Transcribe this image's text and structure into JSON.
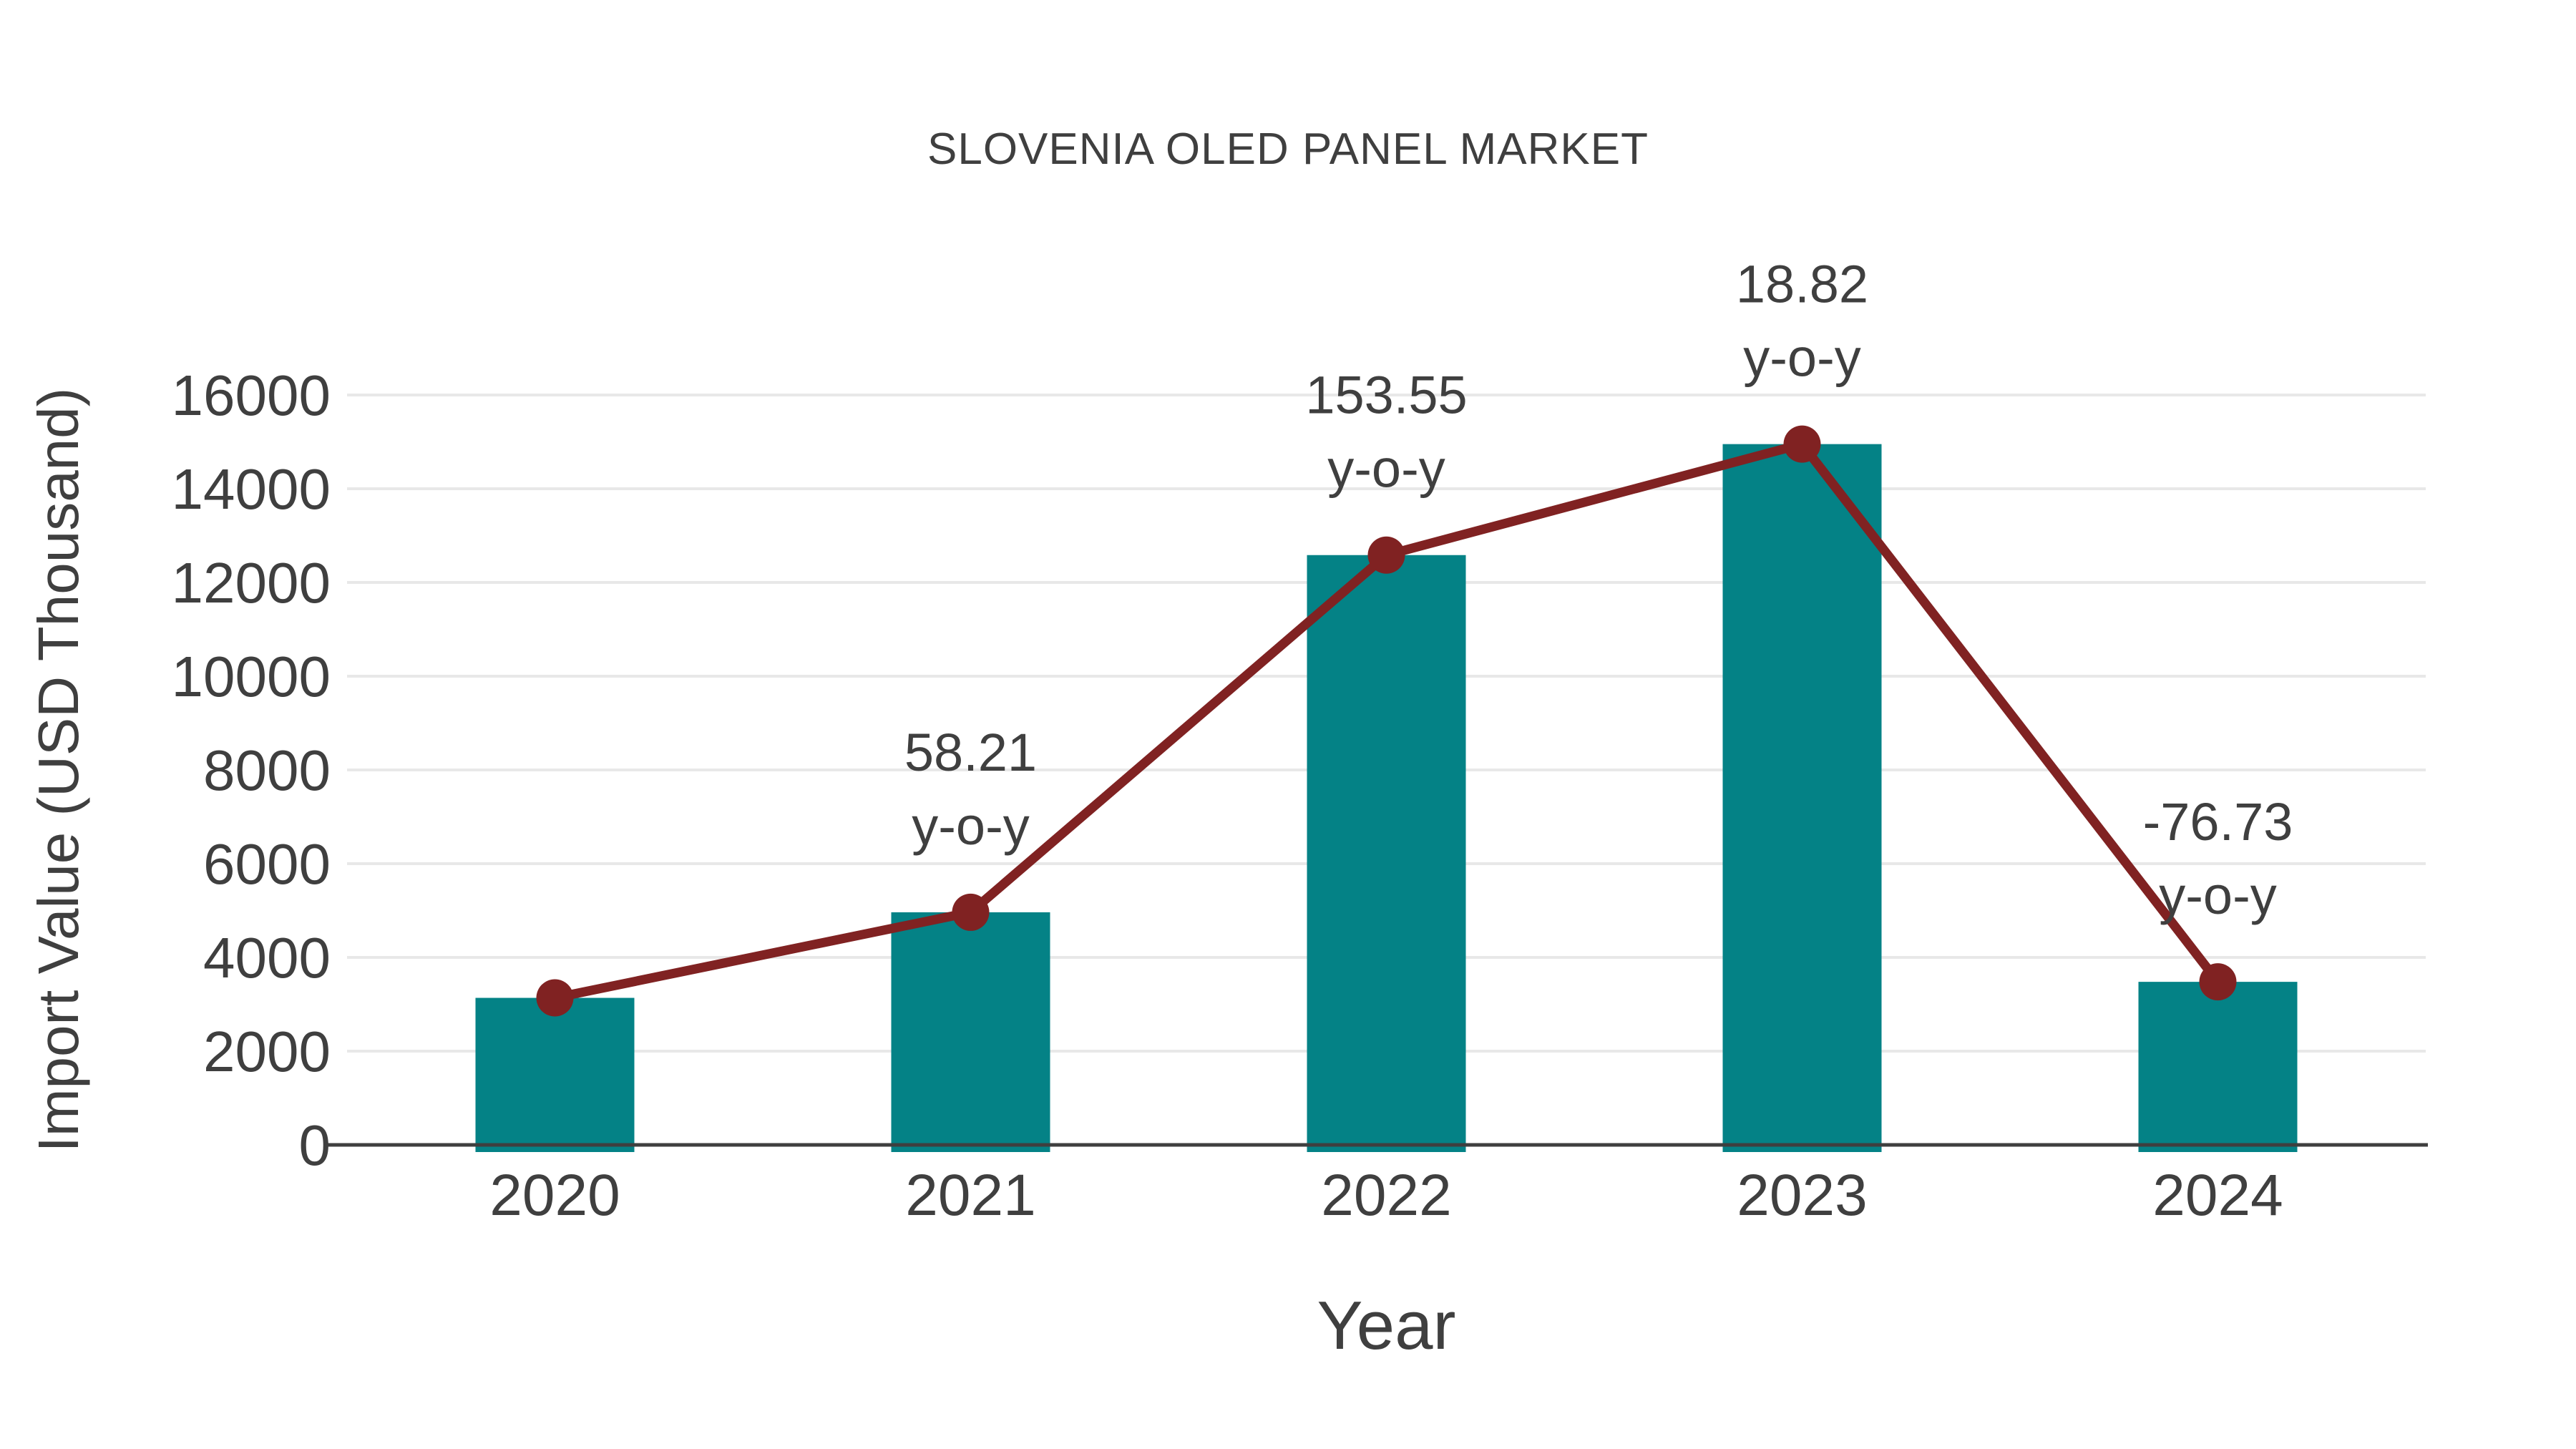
{
  "title": "SLOVENIA OLED PANEL MARKET",
  "colors": {
    "bar": "#048286",
    "line": "#802222",
    "marker": "#802222",
    "grid": "#e8e8e8",
    "axis": "#3f3f3f",
    "text": "#3f3f3f",
    "background": "#ffffff"
  },
  "chart_data": {
    "type": "bar",
    "overlay": "line",
    "title": "SLOVENIA OLED PANEL MARKET",
    "xlabel": "Year",
    "ylabel": "Import Value (USD Thousand)",
    "categories": [
      "2020",
      "2021",
      "2022",
      "2023",
      "2024"
    ],
    "series": [
      {
        "name": "Import Value (USD Thousand)",
        "type": "bar",
        "values": [
          3137,
          4963,
          12584,
          14952,
          3479
        ]
      },
      {
        "name": "Import Value trend",
        "type": "line",
        "values": [
          3137,
          4963,
          12584,
          14952,
          3479
        ]
      }
    ],
    "annotations": [
      {
        "category": "2021",
        "line1": "58.21",
        "line2": "y-o-y"
      },
      {
        "category": "2022",
        "line1": "153.55",
        "line2": "y-o-y"
      },
      {
        "category": "2023",
        "line1": "18.82",
        "line2": "y-o-y"
      },
      {
        "category": "2024",
        "line1": "-76.73",
        "line2": "y-o-y"
      }
    ],
    "ylim": [
      0,
      16000
    ],
    "yticks": [
      0,
      2000,
      4000,
      6000,
      8000,
      10000,
      12000,
      14000,
      16000
    ],
    "grid": "horizontal",
    "legend": "none"
  }
}
